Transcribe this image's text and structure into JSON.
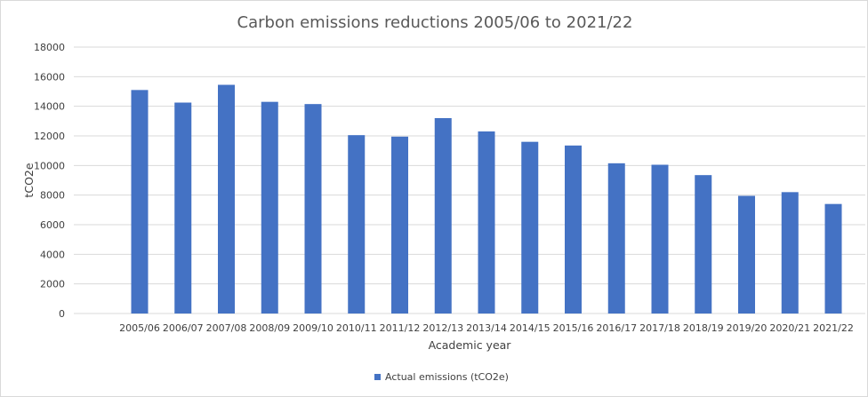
{
  "chart_data": {
    "type": "bar",
    "title": "Carbon emissions reductions 2005/06 to 2021/22",
    "xlabel": "Academic year",
    "ylabel": "tCO2e",
    "ylim": [
      0,
      18000
    ],
    "yticks": [
      0,
      2000,
      4000,
      6000,
      8000,
      10000,
      12000,
      14000,
      16000,
      18000
    ],
    "grid": true,
    "legend_position": "bottom",
    "categories": [
      "2005/06",
      "2006/07",
      "2007/08",
      "2008/09",
      "2009/10",
      "2010/11",
      "2011/12",
      "2012/13",
      "2013/14",
      "2014/15",
      "2015/16",
      "2016/17",
      "2017/18",
      "2018/19",
      "2019/20",
      "2020/21",
      "2021/22"
    ],
    "series": [
      {
        "name": "Actual emissions (tCO2e)",
        "color": "#4472C4",
        "values": [
          15100,
          14250,
          15450,
          14300,
          14150,
          12050,
          11950,
          13200,
          12300,
          11600,
          11350,
          10150,
          10050,
          9350,
          7950,
          8200,
          7400
        ]
      }
    ]
  }
}
